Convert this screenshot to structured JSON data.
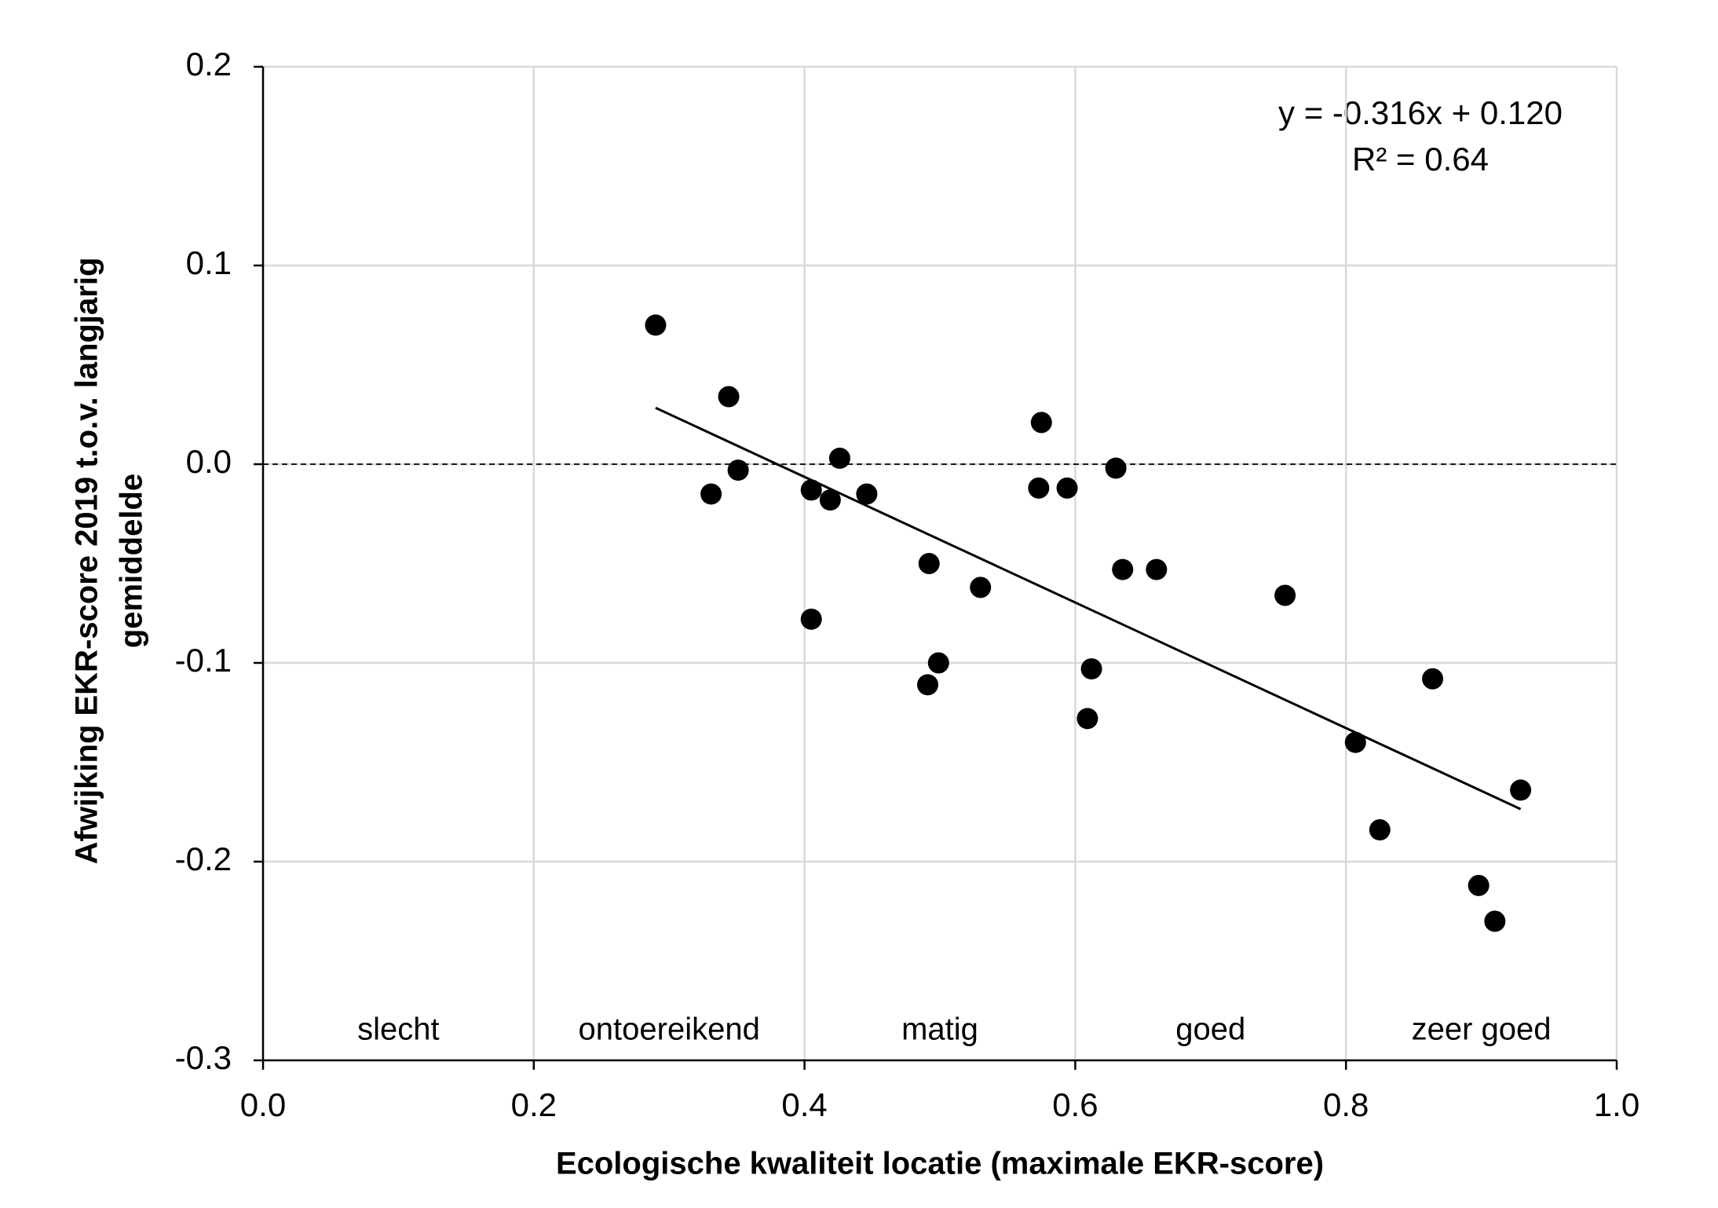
{
  "chart_data": {
    "type": "scatter",
    "xlabel": "Ecologische kwaliteit locatie (maximale EKR-score)",
    "ylabel": [
      "Afwijking EKR-score 2019 t.o.v. langjarig",
      "gemiddelde"
    ],
    "x": [
      0.29,
      0.344,
      0.331,
      0.351,
      0.405,
      0.419,
      0.426,
      0.446,
      0.405,
      0.492,
      0.491,
      0.499,
      0.53,
      0.575,
      0.573,
      0.594,
      0.63,
      0.635,
      0.66,
      0.612,
      0.609,
      0.755,
      0.864,
      0.807,
      0.825,
      0.929,
      0.898,
      0.91
    ],
    "values": [
      0.07,
      0.034,
      -0.015,
      -0.003,
      -0.013,
      -0.018,
      0.003,
      -0.015,
      -0.078,
      -0.05,
      -0.111,
      -0.1,
      -0.062,
      0.021,
      -0.012,
      -0.012,
      -0.002,
      -0.053,
      -0.053,
      -0.103,
      -0.128,
      -0.066,
      -0.108,
      -0.14,
      -0.184,
      -0.164,
      -0.212,
      -0.23
    ],
    "color": "#000000",
    "trendline": {
      "label": "y = -0.316x + 0.120",
      "r2_label": "R² = 0.64",
      "slope": -0.316,
      "intercept": 0.12,
      "x": [
        0.29,
        0.929
      ]
    },
    "reference_line": 0,
    "quality_classes": [
      "slecht",
      "ontoereikend",
      "matig",
      "goed",
      "zeer goed"
    ],
    "xlim": [
      0,
      1
    ],
    "xticks": [
      {
        "value": 0,
        "label": "0.0"
      },
      0.2,
      0.4,
      0.6,
      0.8,
      {
        "value": 1,
        "label": "1.0"
      }
    ],
    "ylim": [
      -0.3,
      0.2
    ],
    "yticks": [
      -0.3,
      -0.2,
      -0.1,
      {
        "value": 0,
        "label": "0.0"
      },
      0.1,
      0.2
    ],
    "grid": true
  }
}
